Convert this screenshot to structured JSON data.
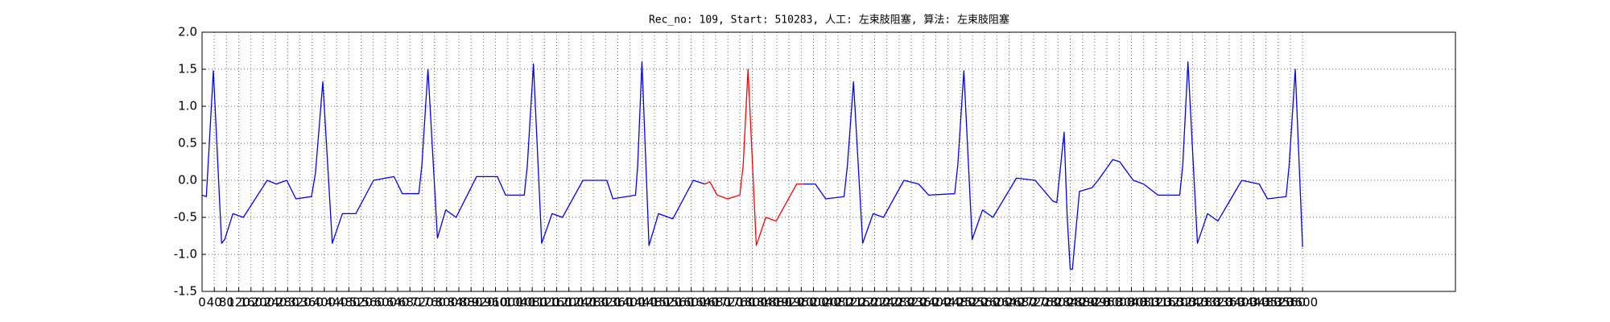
{
  "chart_data": {
    "type": "line",
    "title": "Rec_no: 109, Start: 510283, 人工: 左束肢阻塞, 算法: 左束肢阻塞",
    "x": [
      0,
      14,
      37,
      64,
      74,
      101,
      135,
      213,
      243,
      277,
      307,
      358,
      371,
      395,
      426,
      459,
      503,
      561,
      628,
      655,
      709,
      719,
      739,
      770,
      797,
      831,
      898,
      966,
      993,
      1054,
      1064,
      1084,
      1111,
      1145,
      1179,
      1246,
      1324,
      1344,
      1418,
      1425,
      1439,
      1462,
      1493,
      1540,
      1607,
      1645,
      1661,
      1685,
      1719,
      1759,
      1770,
      1786,
      1813,
      1844,
      1878,
      1945,
      1965,
      2006,
      2040,
      2100,
      2111,
      2131,
      2161,
      2195,
      2229,
      2296,
      2344,
      2377,
      2462,
      2472,
      2492,
      2519,
      2553,
      2587,
      2664,
      2725,
      2783,
      2796,
      2820,
      2830,
      2840,
      2847,
      2870,
      2911,
      2931,
      2979,
      3002,
      3046,
      3080,
      3127,
      3198,
      3208,
      3225,
      3256,
      3289,
      3323,
      3401,
      3458,
      3485,
      3546,
      3556,
      3576,
      3600
    ],
    "series": [
      {
        "color": "#0000ff",
        "values": [
          -0.2,
          -0.22,
          1.48,
          -0.85,
          -0.8,
          -0.45,
          -0.5,
          0.0,
          -0.05,
          0.0,
          -0.25,
          -0.22,
          0.1,
          1.33,
          -0.85,
          -0.45,
          -0.45,
          0.0,
          0.05,
          -0.18,
          -0.18,
          0.2,
          1.5,
          -0.78,
          -0.4,
          -0.5,
          0.05,
          0.05,
          -0.2,
          -0.2,
          0.2,
          1.57,
          -0.85,
          -0.45,
          -0.5,
          0.0,
          0.0,
          -0.25,
          -0.2,
          0.2,
          1.6,
          -0.88,
          -0.45,
          -0.52,
          0.0,
          -0.05,
          null,
          null,
          null,
          null,
          null,
          null,
          null,
          null,
          null,
          null,
          -0.05,
          -0.05,
          -0.25,
          -0.22,
          0.2,
          1.33,
          -0.85,
          -0.45,
          -0.5,
          0.0,
          -0.05,
          -0.2,
          -0.18,
          0.2,
          1.48,
          -0.8,
          -0.4,
          -0.5,
          0.03,
          0.0,
          -0.28,
          -0.3,
          0.65,
          -0.5,
          -1.2,
          -1.2,
          -0.15,
          -0.1,
          0.0,
          0.28,
          0.25,
          0.0,
          -0.05,
          -0.2,
          -0.2,
          0.2,
          1.6,
          -0.85,
          -0.45,
          -0.55,
          0.0,
          -0.05,
          -0.25,
          -0.22,
          0.2,
          1.5,
          -0.9
        ]
      },
      {
        "color": "#ff0000",
        "values": [
          null,
          null,
          null,
          null,
          null,
          null,
          null,
          null,
          null,
          null,
          null,
          null,
          null,
          null,
          null,
          null,
          null,
          null,
          null,
          null,
          null,
          null,
          null,
          null,
          null,
          null,
          null,
          null,
          null,
          null,
          null,
          null,
          null,
          null,
          null,
          null,
          null,
          null,
          null,
          null,
          null,
          null,
          null,
          null,
          null,
          -0.05,
          -0.02,
          -0.2,
          -0.25,
          -0.2,
          0.2,
          1.5,
          -0.88,
          -0.5,
          -0.55,
          -0.05,
          -0.05,
          null,
          null,
          null,
          null,
          null,
          null,
          null,
          null,
          null,
          null,
          null,
          null,
          null,
          null,
          null,
          null,
          null,
          null,
          null,
          null,
          null,
          null,
          null,
          null,
          null,
          null,
          null,
          null,
          null,
          null,
          null,
          null,
          null,
          null,
          null,
          null,
          null,
          null,
          null,
          null,
          null,
          null,
          null,
          null,
          null,
          null
        ]
      }
    ],
    "xlim": [
      0,
      4100
    ],
    "xticks": [
      0,
      40,
      80,
      120,
      160,
      200,
      240,
      280,
      320,
      360,
      400,
      440,
      480,
      520,
      560,
      600,
      640,
      680,
      720,
      760,
      800,
      840,
      880,
      920,
      960,
      1000,
      1040,
      1080,
      1120,
      1160,
      1200,
      1240,
      1280,
      1320,
      1360,
      1400,
      1440,
      1480,
      1520,
      1560,
      1600,
      1640,
      1680,
      1720,
      1760,
      1800,
      1840,
      1880,
      1920,
      1960,
      2000,
      2040,
      2080,
      2120,
      2160,
      2200,
      2240,
      2280,
      2320,
      2360,
      2400,
      2440,
      2480,
      2520,
      2560,
      2600,
      2640,
      2680,
      2720,
      2760,
      2800,
      2840,
      2880,
      2920,
      2960,
      3000,
      3040,
      3080,
      3120,
      3160,
      3200,
      3240,
      3280,
      3320,
      3360,
      3400,
      3440,
      3480,
      3520,
      3560,
      3600
    ],
    "ylim": [
      -1.5,
      2.0
    ],
    "yticks": [
      {
        "value": -1.5,
        "label": "-1.5"
      },
      {
        "value": -1,
        "label": "-1.0"
      },
      {
        "value": -0.5,
        "label": "-0.5"
      },
      {
        "value": 0,
        "label": "0.0"
      },
      {
        "value": 0.5,
        "label": "0.5"
      },
      {
        "value": 1,
        "label": "1.0"
      },
      {
        "value": 1.5,
        "label": "1.5"
      },
      {
        "value": 2,
        "label": "2.0"
      }
    ],
    "grid": true
  }
}
